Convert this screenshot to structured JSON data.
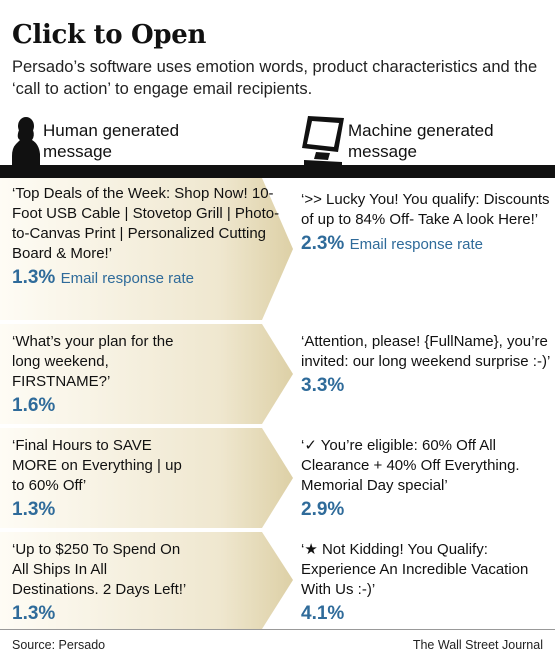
{
  "title": "Click to Open",
  "subtitle": "Persado’s software uses emotion words, product characteristics and the ‘call to action’ to engage email recipients.",
  "columns": {
    "human": {
      "line1": "Human generated",
      "line2": "message",
      "icon": "person-silhouette-icon"
    },
    "machine": {
      "line1": "Machine generated",
      "line2": "message",
      "icon": "monitor-icon"
    }
  },
  "rows": [
    {
      "human": {
        "text": "‘Top Deals of the Week: Shop Now! 10-Foot USB Cable | Stovetop Grill | Photo-to-Canvas Print | Personalized Cutting Board & More!’",
        "rate": "1.3%",
        "rate_label": "Email response rate"
      },
      "machine": {
        "text": "‘>> Lucky You! You qualify: Discounts of up to 84% Off- Take A look Here!’",
        "rate": "2.3%",
        "rate_label": "Email response rate"
      }
    },
    {
      "human": {
        "text": "‘What’s your plan for the long weekend, FIRSTNAME?’",
        "rate": "1.6%",
        "rate_label": ""
      },
      "machine": {
        "text": "‘Attention, please! {FullName}, you’re invited: our long weekend surprise :-)’",
        "rate": "3.3%",
        "rate_label": ""
      }
    },
    {
      "human": {
        "text": "‘Final Hours to SAVE MORE on Everything | up to 60% Off’",
        "rate": "1.3%",
        "rate_label": ""
      },
      "machine": {
        "text": "‘✓ You’re eligible: 60% Off All Clearance + 40% Off Everything. Memorial Day special’",
        "rate": "2.9%",
        "rate_label": ""
      }
    },
    {
      "human": {
        "text": "‘Up to $250 To Spend On All Ships In All Destinations. 2 Days Left!’",
        "rate": "1.3%",
        "rate_label": ""
      },
      "machine": {
        "text": "‘★ Not Kidding! You Qualify: Experience An Incredible Vacation With Us :-)’",
        "rate": "4.1%",
        "rate_label": ""
      }
    }
  ],
  "footer": {
    "source": "Source: Persado",
    "publisher": "The Wall Street Journal"
  },
  "colors": {
    "accent": "#2f6b9a",
    "panel_light": "#fbf8ef",
    "panel_dark": "#e0d4ac"
  }
}
